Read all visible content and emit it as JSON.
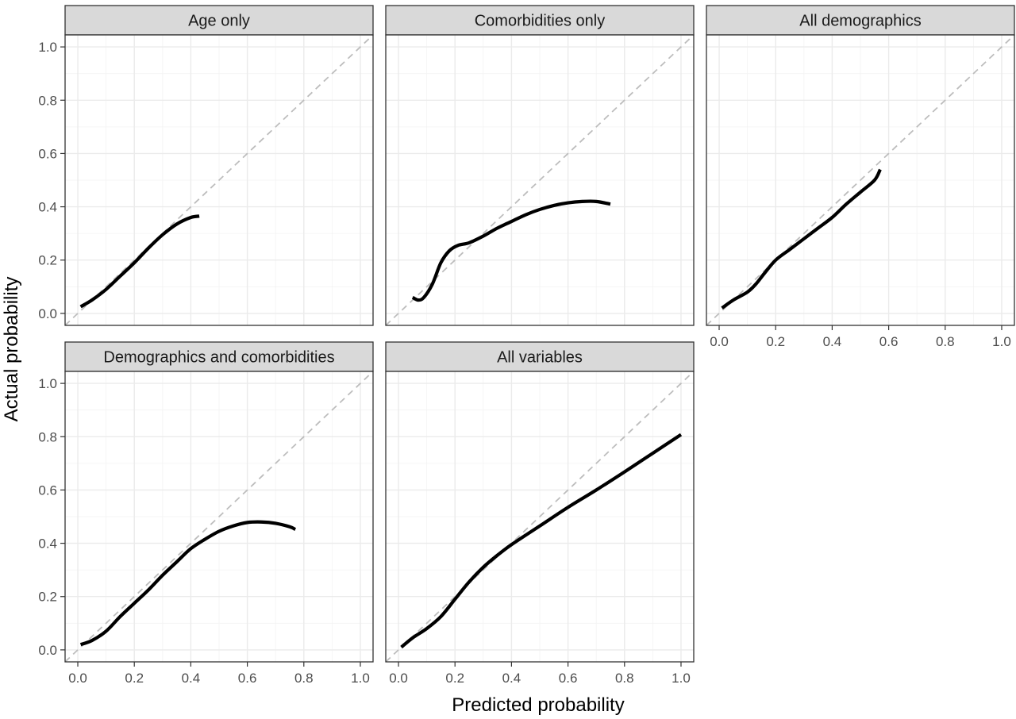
{
  "chart_data": {
    "type": "line",
    "xlabel": "Predicted probability",
    "ylabel": "Actual probability",
    "xlim": [
      0,
      1
    ],
    "ylim": [
      0,
      1
    ],
    "x_ticks": [
      "0.0",
      "0.2",
      "0.4",
      "0.6",
      "0.8",
      "1.0"
    ],
    "y_ticks": [
      "0.0",
      "0.2",
      "0.4",
      "0.6",
      "0.8",
      "1.0"
    ],
    "grid": true,
    "reference_line": "dashed diagonal y = x",
    "colors": {
      "curve": "#000000",
      "reference": "#bdbdbd",
      "strip": "#d9d9d9"
    },
    "panels": [
      {
        "title": "Age only",
        "points": [
          [
            0.01,
            0.025
          ],
          [
            0.05,
            0.05
          ],
          [
            0.1,
            0.09
          ],
          [
            0.15,
            0.14
          ],
          [
            0.2,
            0.19
          ],
          [
            0.25,
            0.245
          ],
          [
            0.3,
            0.295
          ],
          [
            0.35,
            0.335
          ],
          [
            0.4,
            0.36
          ],
          [
            0.43,
            0.365
          ]
        ]
      },
      {
        "title": "Comorbidities only",
        "points": [
          [
            0.05,
            0.06
          ],
          [
            0.07,
            0.05
          ],
          [
            0.09,
            0.06
          ],
          [
            0.12,
            0.11
          ],
          [
            0.15,
            0.19
          ],
          [
            0.18,
            0.235
          ],
          [
            0.21,
            0.255
          ],
          [
            0.25,
            0.265
          ],
          [
            0.3,
            0.29
          ],
          [
            0.35,
            0.32
          ],
          [
            0.4,
            0.345
          ],
          [
            0.45,
            0.37
          ],
          [
            0.5,
            0.39
          ],
          [
            0.55,
            0.405
          ],
          [
            0.6,
            0.415
          ],
          [
            0.65,
            0.42
          ],
          [
            0.7,
            0.42
          ],
          [
            0.75,
            0.41
          ]
        ]
      },
      {
        "title": "All demographics",
        "points": [
          [
            0.01,
            0.02
          ],
          [
            0.05,
            0.05
          ],
          [
            0.1,
            0.08
          ],
          [
            0.13,
            0.11
          ],
          [
            0.16,
            0.15
          ],
          [
            0.2,
            0.2
          ],
          [
            0.25,
            0.24
          ],
          [
            0.3,
            0.28
          ],
          [
            0.35,
            0.32
          ],
          [
            0.4,
            0.36
          ],
          [
            0.45,
            0.41
          ],
          [
            0.5,
            0.455
          ],
          [
            0.55,
            0.5
          ],
          [
            0.57,
            0.54
          ]
        ]
      },
      {
        "title": "Demographics and comorbidities",
        "points": [
          [
            0.01,
            0.02
          ],
          [
            0.05,
            0.035
          ],
          [
            0.1,
            0.07
          ],
          [
            0.15,
            0.125
          ],
          [
            0.2,
            0.175
          ],
          [
            0.25,
            0.225
          ],
          [
            0.3,
            0.28
          ],
          [
            0.35,
            0.33
          ],
          [
            0.4,
            0.38
          ],
          [
            0.45,
            0.415
          ],
          [
            0.5,
            0.445
          ],
          [
            0.55,
            0.465
          ],
          [
            0.6,
            0.478
          ],
          [
            0.65,
            0.48
          ],
          [
            0.7,
            0.475
          ],
          [
            0.75,
            0.462
          ],
          [
            0.77,
            0.452
          ]
        ]
      },
      {
        "title": "All variables",
        "points": [
          [
            0.01,
            0.01
          ],
          [
            0.05,
            0.045
          ],
          [
            0.1,
            0.08
          ],
          [
            0.15,
            0.125
          ],
          [
            0.2,
            0.19
          ],
          [
            0.25,
            0.255
          ],
          [
            0.3,
            0.31
          ],
          [
            0.35,
            0.355
          ],
          [
            0.4,
            0.395
          ],
          [
            0.5,
            0.465
          ],
          [
            0.6,
            0.535
          ],
          [
            0.7,
            0.6
          ],
          [
            0.8,
            0.668
          ],
          [
            0.9,
            0.738
          ],
          [
            1.0,
            0.808
          ]
        ]
      }
    ]
  }
}
